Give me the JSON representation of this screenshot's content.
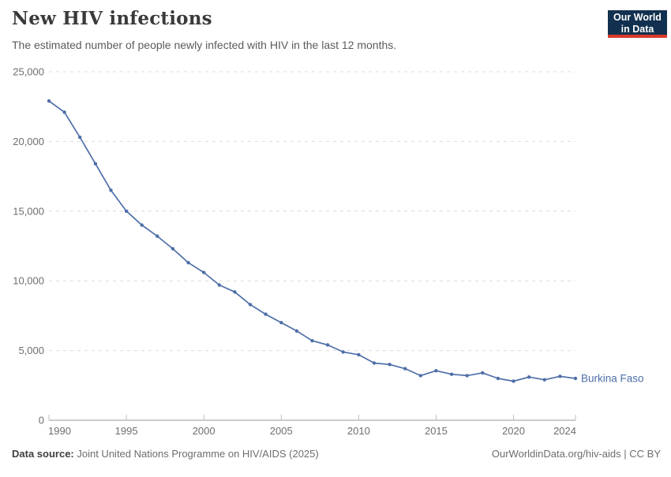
{
  "header": {
    "title": "New HIV infections",
    "subtitle": "The estimated number of people newly infected with HIV in the last 12 months.",
    "logo": {
      "line1": "Our World",
      "line2": "in Data",
      "bg_color": "#12304f",
      "accent_color": "#d93a2b"
    }
  },
  "chart_data": {
    "type": "line",
    "title": "New HIV infections",
    "xlabel": "",
    "ylabel": "",
    "xlim": [
      1990,
      2024
    ],
    "ylim": [
      0,
      25000
    ],
    "xticks": [
      1990,
      1995,
      2000,
      2005,
      2010,
      2015,
      2020,
      2024
    ],
    "yticks": [
      0,
      5000,
      10000,
      15000,
      20000,
      25000
    ],
    "grid": "horizontal-dashed",
    "legend_position": "end-of-line-label",
    "x": [
      1990,
      1991,
      1992,
      1993,
      1994,
      1995,
      1996,
      1997,
      1998,
      1999,
      2000,
      2001,
      2002,
      2003,
      2004,
      2005,
      2006,
      2007,
      2008,
      2009,
      2010,
      2011,
      2012,
      2013,
      2014,
      2015,
      2016,
      2017,
      2018,
      2019,
      2020,
      2021,
      2022,
      2023,
      2024
    ],
    "series": [
      {
        "name": "Burkina Faso",
        "color": "#4e6fa8",
        "values": [
          22900,
          22100,
          20300,
          18400,
          16500,
          15000,
          14000,
          13200,
          12300,
          11300,
          10600,
          9700,
          9200,
          8300,
          7600,
          7000,
          6400,
          5700,
          5400,
          4900,
          4700,
          4100,
          4000,
          3700,
          3200,
          3550,
          3300,
          3200,
          3400,
          3000,
          2800,
          3100,
          2900,
          3150,
          3000
        ]
      }
    ]
  },
  "footer": {
    "source_label": "Data source:",
    "source_text": " Joint United Nations Programme on HIV/AIDS (2025)",
    "link_text": "OurWorldinData.org/hiv-aids | CC BY"
  },
  "colors": {
    "grid": "#dcdcdc",
    "axis": "#9a9a9a",
    "tick": "#bdbdbd",
    "tick_label": "#6e6e6e",
    "title_text": "#3a3a3a",
    "subtitle_text": "#5b5b5b"
  }
}
